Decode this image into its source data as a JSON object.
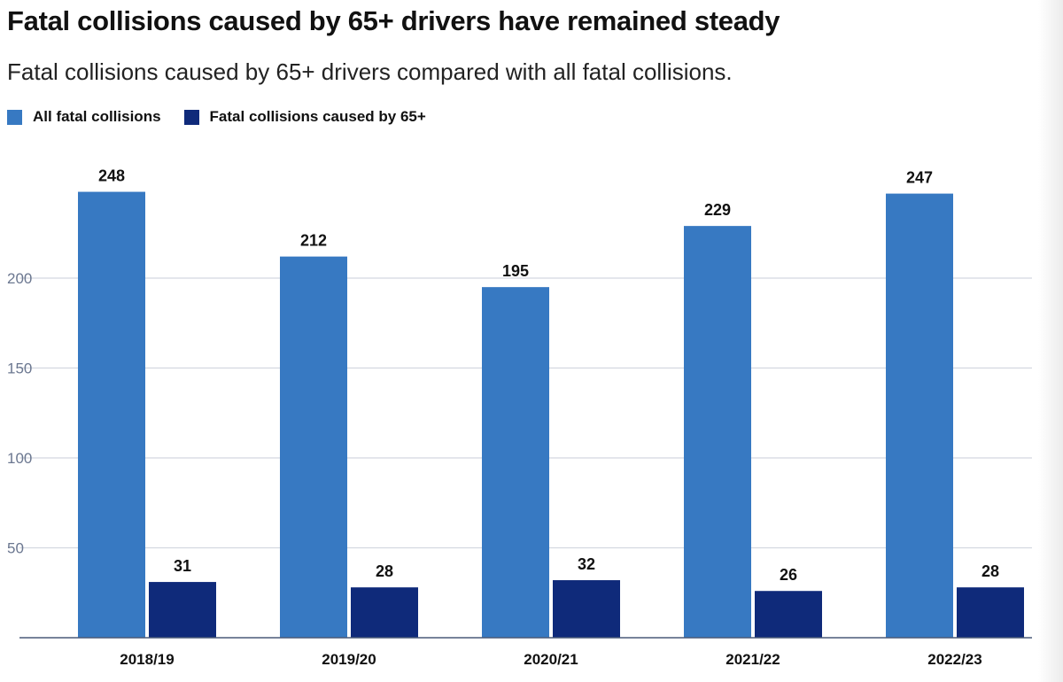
{
  "title": "Fatal collisions caused by 65+ drivers have remained steady",
  "subtitle": "Fatal collisions caused by 65+ drivers compared with all fatal collisions.",
  "colors": {
    "all_fatal": "#3779c2",
    "sixty_five_plus": "#0f2a7a",
    "gridline": "#d4d8e0",
    "axis": "#4a5a78",
    "tick_text": "#6b7790"
  },
  "chart_data": {
    "type": "bar",
    "categories": [
      "2018/19",
      "2019/20",
      "2020/21",
      "2021/22",
      "2022/23"
    ],
    "series": [
      {
        "name": "All fatal collisions",
        "values": [
          248,
          212,
          195,
          229,
          247
        ]
      },
      {
        "name": "Fatal collisions caused by 65+",
        "values": [
          31,
          28,
          32,
          26,
          28
        ]
      }
    ],
    "yticks": [
      50,
      100,
      150,
      200
    ],
    "ylim": [
      0,
      248
    ],
    "grid": true,
    "legend_position": "top-left",
    "data_labels": true
  }
}
